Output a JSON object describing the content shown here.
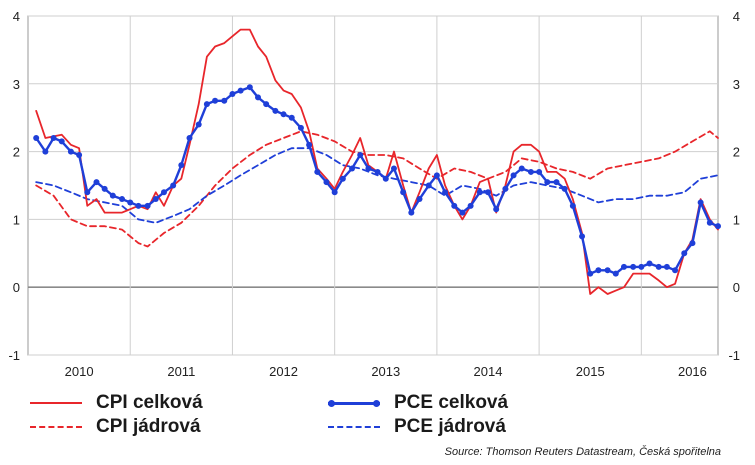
{
  "chart_data": {
    "type": "line",
    "ylim": [
      -1,
      4
    ],
    "y_ticks": [
      "-1",
      "0",
      "1",
      "2",
      "3",
      "4"
    ],
    "x_tick_labels": [
      "2010",
      "2011",
      "2012",
      "2013",
      "2014",
      "2015",
      "2016"
    ],
    "xlim": [
      2009.5,
      2016.25
    ],
    "grid": true,
    "legend_position": "bottom",
    "source": "Source: Thomson Reuters Datastream, Česká spořitelna",
    "series": [
      {
        "name": "CPI celková",
        "color": "#e8262b",
        "style": "solid",
        "points": [
          [
            2009.58,
            2.6
          ],
          [
            2009.67,
            2.2
          ],
          [
            2009.83,
            2.25
          ],
          [
            2009.92,
            2.1
          ],
          [
            2010.0,
            2.05
          ],
          [
            2010.08,
            1.2
          ],
          [
            2010.17,
            1.3
          ],
          [
            2010.25,
            1.1
          ],
          [
            2010.42,
            1.1
          ],
          [
            2010.5,
            1.15
          ],
          [
            2010.58,
            1.2
          ],
          [
            2010.67,
            1.15
          ],
          [
            2010.75,
            1.4
          ],
          [
            2010.83,
            1.2
          ],
          [
            2010.92,
            1.5
          ],
          [
            2011.0,
            1.6
          ],
          [
            2011.08,
            2.1
          ],
          [
            2011.17,
            2.7
          ],
          [
            2011.25,
            3.4
          ],
          [
            2011.33,
            3.55
          ],
          [
            2011.42,
            3.6
          ],
          [
            2011.5,
            3.7
          ],
          [
            2011.58,
            3.8
          ],
          [
            2011.67,
            3.8
          ],
          [
            2011.75,
            3.55
          ],
          [
            2011.83,
            3.4
          ],
          [
            2011.92,
            3.05
          ],
          [
            2012.0,
            2.9
          ],
          [
            2012.08,
            2.85
          ],
          [
            2012.17,
            2.65
          ],
          [
            2012.25,
            2.3
          ],
          [
            2012.33,
            1.75
          ],
          [
            2012.42,
            1.6
          ],
          [
            2012.5,
            1.45
          ],
          [
            2012.58,
            1.7
          ],
          [
            2012.67,
            1.95
          ],
          [
            2012.75,
            2.2
          ],
          [
            2012.83,
            1.8
          ],
          [
            2012.92,
            1.7
          ],
          [
            2013.0,
            1.6
          ],
          [
            2013.08,
            2.0
          ],
          [
            2013.17,
            1.5
          ],
          [
            2013.25,
            1.1
          ],
          [
            2013.33,
            1.4
          ],
          [
            2013.42,
            1.75
          ],
          [
            2013.5,
            1.95
          ],
          [
            2013.58,
            1.5
          ],
          [
            2013.67,
            1.2
          ],
          [
            2013.75,
            1.0
          ],
          [
            2013.83,
            1.2
          ],
          [
            2013.92,
            1.55
          ],
          [
            2014.0,
            1.6
          ],
          [
            2014.08,
            1.1
          ],
          [
            2014.17,
            1.5
          ],
          [
            2014.25,
            2.0
          ],
          [
            2014.33,
            2.1
          ],
          [
            2014.42,
            2.1
          ],
          [
            2014.5,
            2.0
          ],
          [
            2014.58,
            1.7
          ],
          [
            2014.67,
            1.7
          ],
          [
            2014.75,
            1.6
          ],
          [
            2014.83,
            1.3
          ],
          [
            2014.92,
            0.8
          ],
          [
            2015.0,
            -0.1
          ],
          [
            2015.08,
            0.0
          ],
          [
            2015.17,
            -0.1
          ],
          [
            2015.25,
            -0.05
          ],
          [
            2015.33,
            0.0
          ],
          [
            2015.42,
            0.2
          ],
          [
            2015.5,
            0.2
          ],
          [
            2015.58,
            0.2
          ],
          [
            2015.67,
            0.1
          ],
          [
            2015.75,
            0.0
          ],
          [
            2015.83,
            0.05
          ],
          [
            2015.92,
            0.5
          ],
          [
            2016.0,
            0.7
          ],
          [
            2016.08,
            1.3
          ],
          [
            2016.17,
            1.0
          ],
          [
            2016.25,
            0.85
          ]
        ]
      },
      {
        "name": "CPI jádrová",
        "color": "#e8262b",
        "style": "dashed",
        "points": [
          [
            2009.58,
            1.5
          ],
          [
            2009.75,
            1.35
          ],
          [
            2009.92,
            1.0
          ],
          [
            2010.08,
            0.9
          ],
          [
            2010.25,
            0.9
          ],
          [
            2010.42,
            0.85
          ],
          [
            2010.58,
            0.65
          ],
          [
            2010.67,
            0.6
          ],
          [
            2010.83,
            0.8
          ],
          [
            2011.0,
            0.95
          ],
          [
            2011.17,
            1.2
          ],
          [
            2011.33,
            1.5
          ],
          [
            2011.5,
            1.75
          ],
          [
            2011.67,
            1.95
          ],
          [
            2011.83,
            2.1
          ],
          [
            2012.0,
            2.2
          ],
          [
            2012.17,
            2.3
          ],
          [
            2012.33,
            2.25
          ],
          [
            2012.5,
            2.15
          ],
          [
            2012.67,
            2.0
          ],
          [
            2012.83,
            1.95
          ],
          [
            2013.0,
            1.95
          ],
          [
            2013.17,
            1.9
          ],
          [
            2013.33,
            1.75
          ],
          [
            2013.5,
            1.6
          ],
          [
            2013.67,
            1.75
          ],
          [
            2013.83,
            1.7
          ],
          [
            2014.0,
            1.6
          ],
          [
            2014.17,
            1.7
          ],
          [
            2014.33,
            1.9
          ],
          [
            2014.5,
            1.85
          ],
          [
            2014.67,
            1.75
          ],
          [
            2014.83,
            1.7
          ],
          [
            2015.0,
            1.6
          ],
          [
            2015.17,
            1.75
          ],
          [
            2015.33,
            1.8
          ],
          [
            2015.5,
            1.85
          ],
          [
            2015.67,
            1.9
          ],
          [
            2015.83,
            2.0
          ],
          [
            2016.0,
            2.15
          ],
          [
            2016.17,
            2.3
          ],
          [
            2016.25,
            2.2
          ]
        ]
      },
      {
        "name": "PCE celková",
        "color": "#1f3fd8",
        "style": "solid-markers",
        "points": [
          [
            2009.58,
            2.2
          ],
          [
            2009.67,
            2.0
          ],
          [
            2009.75,
            2.2
          ],
          [
            2009.83,
            2.15
          ],
          [
            2009.92,
            2.0
          ],
          [
            2010.0,
            1.95
          ],
          [
            2010.08,
            1.4
          ],
          [
            2010.17,
            1.55
          ],
          [
            2010.25,
            1.45
          ],
          [
            2010.33,
            1.35
          ],
          [
            2010.42,
            1.3
          ],
          [
            2010.5,
            1.25
          ],
          [
            2010.58,
            1.2
          ],
          [
            2010.67,
            1.2
          ],
          [
            2010.75,
            1.3
          ],
          [
            2010.83,
            1.4
          ],
          [
            2010.92,
            1.5
          ],
          [
            2011.0,
            1.8
          ],
          [
            2011.08,
            2.2
          ],
          [
            2011.17,
            2.4
          ],
          [
            2011.25,
            2.7
          ],
          [
            2011.33,
            2.75
          ],
          [
            2011.42,
            2.75
          ],
          [
            2011.5,
            2.85
          ],
          [
            2011.58,
            2.9
          ],
          [
            2011.67,
            2.95
          ],
          [
            2011.75,
            2.8
          ],
          [
            2011.83,
            2.7
          ],
          [
            2011.92,
            2.6
          ],
          [
            2012.0,
            2.55
          ],
          [
            2012.08,
            2.5
          ],
          [
            2012.17,
            2.35
          ],
          [
            2012.25,
            2.1
          ],
          [
            2012.33,
            1.7
          ],
          [
            2012.42,
            1.55
          ],
          [
            2012.5,
            1.4
          ],
          [
            2012.58,
            1.6
          ],
          [
            2012.67,
            1.75
          ],
          [
            2012.75,
            1.95
          ],
          [
            2012.83,
            1.75
          ],
          [
            2012.92,
            1.7
          ],
          [
            2013.0,
            1.6
          ],
          [
            2013.08,
            1.75
          ],
          [
            2013.17,
            1.4
          ],
          [
            2013.25,
            1.1
          ],
          [
            2013.33,
            1.3
          ],
          [
            2013.42,
            1.5
          ],
          [
            2013.5,
            1.65
          ],
          [
            2013.58,
            1.4
          ],
          [
            2013.67,
            1.2
          ],
          [
            2013.75,
            1.1
          ],
          [
            2013.83,
            1.2
          ],
          [
            2013.92,
            1.4
          ],
          [
            2014.0,
            1.4
          ],
          [
            2014.08,
            1.15
          ],
          [
            2014.17,
            1.45
          ],
          [
            2014.25,
            1.65
          ],
          [
            2014.33,
            1.75
          ],
          [
            2014.42,
            1.7
          ],
          [
            2014.5,
            1.7
          ],
          [
            2014.58,
            1.55
          ],
          [
            2014.67,
            1.55
          ],
          [
            2014.75,
            1.45
          ],
          [
            2014.83,
            1.2
          ],
          [
            2014.92,
            0.75
          ],
          [
            2015.0,
            0.2
          ],
          [
            2015.08,
            0.25
          ],
          [
            2015.17,
            0.25
          ],
          [
            2015.25,
            0.2
          ],
          [
            2015.33,
            0.3
          ],
          [
            2015.42,
            0.3
          ],
          [
            2015.5,
            0.3
          ],
          [
            2015.58,
            0.35
          ],
          [
            2015.67,
            0.3
          ],
          [
            2015.75,
            0.3
          ],
          [
            2015.83,
            0.25
          ],
          [
            2015.92,
            0.5
          ],
          [
            2016.0,
            0.65
          ],
          [
            2016.08,
            1.25
          ],
          [
            2016.17,
            0.95
          ],
          [
            2016.25,
            0.9
          ]
        ]
      },
      {
        "name": "PCE jádrová",
        "color": "#1f3fd8",
        "style": "dashed",
        "points": [
          [
            2009.58,
            1.55
          ],
          [
            2009.75,
            1.5
          ],
          [
            2009.92,
            1.4
          ],
          [
            2010.08,
            1.3
          ],
          [
            2010.25,
            1.25
          ],
          [
            2010.42,
            1.2
          ],
          [
            2010.58,
            1.0
          ],
          [
            2010.75,
            0.95
          ],
          [
            2010.92,
            1.05
          ],
          [
            2011.08,
            1.15
          ],
          [
            2011.25,
            1.35
          ],
          [
            2011.42,
            1.5
          ],
          [
            2011.58,
            1.65
          ],
          [
            2011.75,
            1.8
          ],
          [
            2011.92,
            1.95
          ],
          [
            2012.08,
            2.05
          ],
          [
            2012.25,
            2.05
          ],
          [
            2012.42,
            1.95
          ],
          [
            2012.58,
            1.8
          ],
          [
            2012.75,
            1.75
          ],
          [
            2012.92,
            1.65
          ],
          [
            2013.08,
            1.6
          ],
          [
            2013.25,
            1.55
          ],
          [
            2013.42,
            1.5
          ],
          [
            2013.58,
            1.35
          ],
          [
            2013.75,
            1.5
          ],
          [
            2013.92,
            1.45
          ],
          [
            2014.08,
            1.35
          ],
          [
            2014.25,
            1.5
          ],
          [
            2014.42,
            1.55
          ],
          [
            2014.58,
            1.5
          ],
          [
            2014.75,
            1.45
          ],
          [
            2014.92,
            1.35
          ],
          [
            2015.08,
            1.25
          ],
          [
            2015.25,
            1.3
          ],
          [
            2015.42,
            1.3
          ],
          [
            2015.58,
            1.35
          ],
          [
            2015.75,
            1.35
          ],
          [
            2015.92,
            1.4
          ],
          [
            2016.08,
            1.6
          ],
          [
            2016.25,
            1.65
          ]
        ]
      }
    ]
  }
}
